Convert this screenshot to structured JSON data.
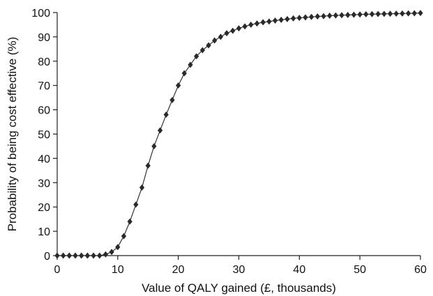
{
  "chart_data": {
    "type": "line",
    "title": "",
    "xlabel": "Value of QALY gained (£, thousands)",
    "ylabel": "Probability of being cost effective (%)",
    "xlim": [
      0,
      60
    ],
    "ylim": [
      0,
      100
    ],
    "x_ticks": [
      0,
      10,
      20,
      30,
      40,
      50,
      60
    ],
    "y_ticks": [
      0,
      10,
      20,
      30,
      40,
      50,
      60,
      70,
      80,
      90,
      100
    ],
    "x_tick_labels": [
      "0",
      "10",
      "20",
      "30",
      "40",
      "50",
      "60"
    ],
    "y_tick_labels": [
      "0",
      "10",
      "20",
      "30",
      "40",
      "50",
      "60",
      "70",
      "80",
      "90",
      "100"
    ],
    "grid": false,
    "legend": "none",
    "marker": "diamond",
    "series": [
      {
        "x": [
          0,
          1,
          2,
          3,
          4,
          5,
          6,
          7,
          8,
          9,
          10,
          11,
          12,
          13,
          14,
          15,
          16,
          17,
          18,
          19,
          20,
          21,
          22,
          23,
          24,
          25,
          26,
          27,
          28,
          29,
          30,
          31,
          32,
          33,
          34,
          35,
          36,
          37,
          38,
          39,
          40,
          41,
          42,
          43,
          44,
          45,
          46,
          47,
          48,
          49,
          50,
          51,
          52,
          53,
          54,
          55,
          56,
          57,
          58,
          59,
          60
        ],
        "y": [
          0,
          0,
          0,
          0,
          0,
          0,
          0,
          0,
          0.5,
          1.5,
          3.5,
          8,
          14,
          21,
          28,
          37,
          45,
          51.5,
          58,
          64,
          70,
          75,
          78.5,
          82,
          84.5,
          86.5,
          88.5,
          90,
          91.5,
          92.5,
          93.5,
          94.3,
          95,
          95.5,
          96,
          96.3,
          96.7,
          97,
          97.3,
          97.6,
          97.8,
          98,
          98.2,
          98.4,
          98.5,
          98.7,
          98.8,
          98.9,
          99,
          99.1,
          99.2,
          99.3,
          99.35,
          99.4,
          99.45,
          99.5,
          99.55,
          99.6,
          99.65,
          99.7,
          99.8
        ]
      }
    ]
  }
}
